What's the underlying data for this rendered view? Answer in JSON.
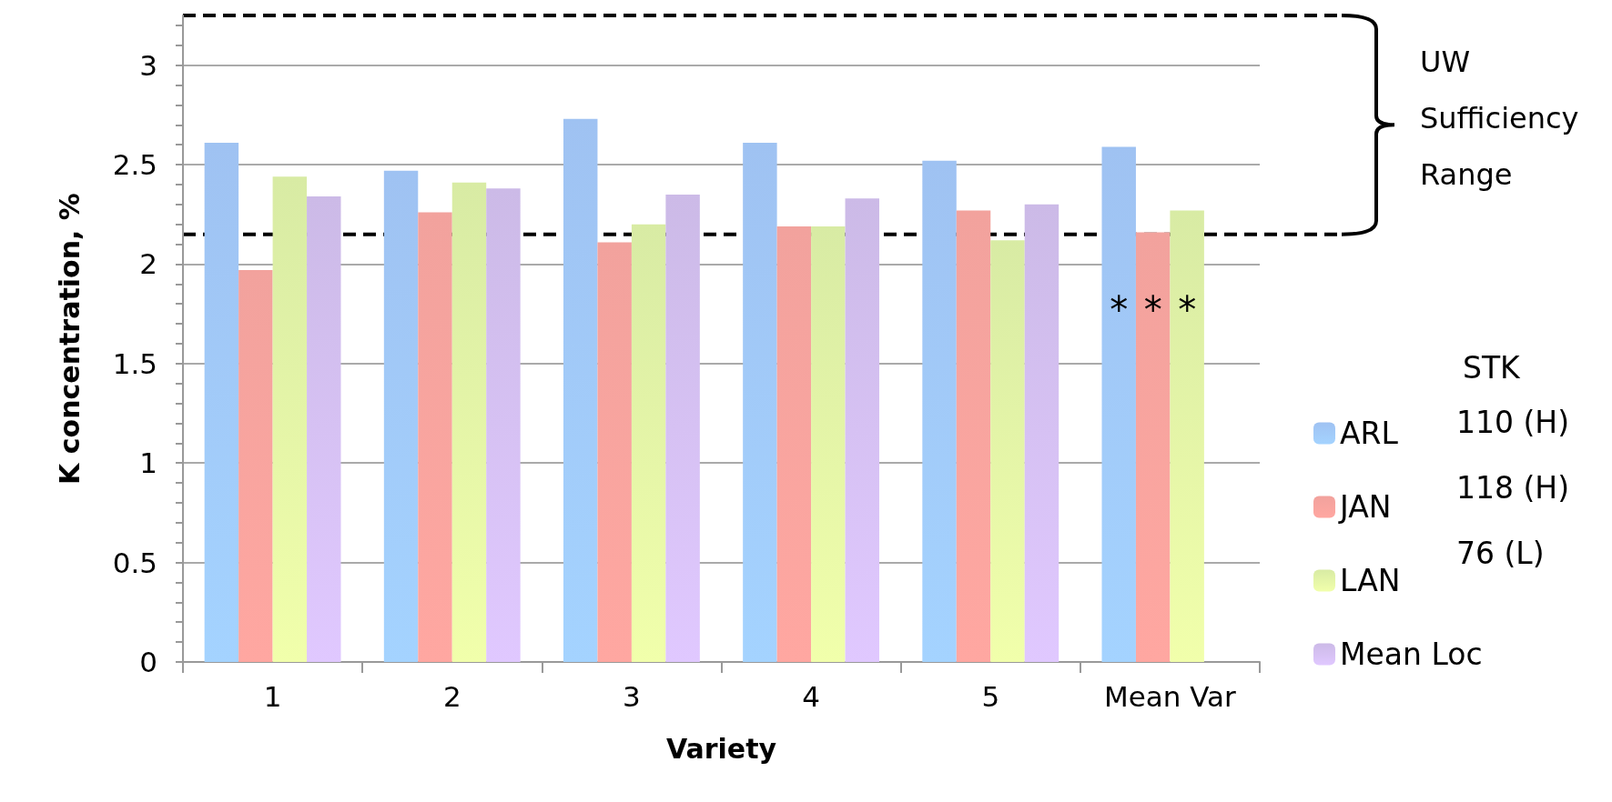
{
  "chart_data": {
    "type": "bar",
    "xlabel": "Variety",
    "ylabel": "K concentration, %",
    "legend_title": "STK",
    "categories": [
      "1",
      "2",
      "3",
      "4",
      "5",
      "Mean Var"
    ],
    "series": [
      {
        "name": "ARL",
        "color": "#8fb8f0",
        "values": [
          2.61,
          2.47,
          2.73,
          2.61,
          2.52,
          2.59
        ]
      },
      {
        "name": "JAN",
        "color": "#f0928c",
        "values": [
          1.97,
          2.26,
          2.11,
          2.19,
          2.27,
          2.16
        ]
      },
      {
        "name": "LAN",
        "color": "#d2e895",
        "values": [
          2.44,
          2.41,
          2.2,
          2.19,
          2.12,
          2.27
        ]
      },
      {
        "name": "Mean Loc",
        "color": "#c3aee3",
        "values": [
          2.34,
          2.38,
          2.35,
          2.33,
          2.3,
          null
        ]
      }
    ],
    "ylim": [
      0,
      3.25
    ],
    "yticks": [
      0,
      {
        "value": 0.1,
        "label": null
      },
      {
        "value": 0.2,
        "label": null
      },
      {
        "value": 0.3,
        "label": null
      },
      {
        "value": 0.4,
        "label": null
      },
      0.5,
      {
        "value": 0.6,
        "label": null
      },
      {
        "value": 0.7,
        "label": null
      },
      {
        "value": 0.8,
        "label": null
      },
      {
        "value": 0.9,
        "label": null
      },
      1,
      {
        "value": 1.1,
        "label": null
      },
      {
        "value": 1.2,
        "label": null
      },
      {
        "value": 1.3,
        "label": null
      },
      {
        "value": 1.4,
        "label": null
      },
      1.5,
      {
        "value": 1.6,
        "label": null
      },
      {
        "value": 1.7,
        "label": null
      },
      {
        "value": 1.8,
        "label": null
      },
      {
        "value": 1.9,
        "label": null
      },
      2,
      {
        "value": 2.1,
        "label": null
      },
      {
        "value": 2.2,
        "label": null
      },
      {
        "value": 2.3,
        "label": null
      },
      {
        "value": 2.4,
        "label": null
      },
      2.5,
      {
        "value": 2.6,
        "label": null
      },
      {
        "value": 2.7,
        "label": null
      },
      {
        "value": 2.8,
        "label": null
      },
      {
        "value": 2.9,
        "label": null
      },
      3,
      {
        "value": 3.1,
        "label": null
      },
      {
        "value": 3.2,
        "label": null
      }
    ],
    "grid": "y",
    "legend": "right",
    "ref_lines": [
      {
        "axis": "y",
        "value": 3.25,
        "color": "#000000",
        "line_style": "dashed"
      },
      {
        "axis": "y",
        "value": 2.15,
        "color": "#000000",
        "line_style": "dashed"
      }
    ],
    "annotations": [
      "110 (H)",
      "118 (H)",
      "76 (L)",
      "UW Sufficiency Range",
      {
        "text": "*",
        "x": "Mean Var",
        "y": 1.77
      },
      {
        "text": "*",
        "x": "Mean Var",
        "y": 1.77
      },
      {
        "text": "*",
        "x": "Mean Var",
        "y": 1.77
      }
    ]
  }
}
